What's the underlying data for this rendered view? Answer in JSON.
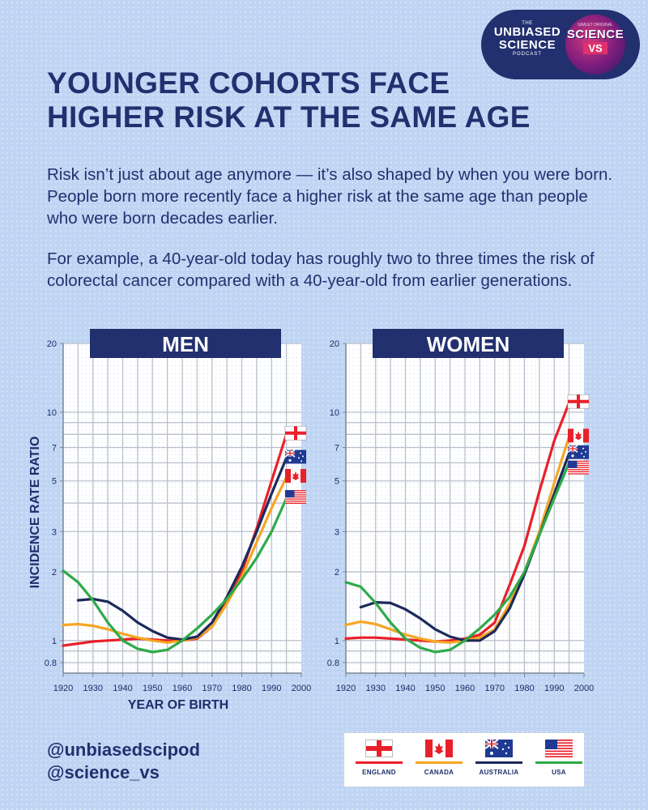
{
  "logos": {
    "unbiased": {
      "the": "THE",
      "line1": "UNBIASED",
      "line2": "SCIENCE",
      "sub": "PODCAST"
    },
    "sciencevs": {
      "top": "GIMLET ORIGINAL",
      "line1": "SCIENCE",
      "line2": "VS"
    }
  },
  "headline": {
    "line1": "YOUNGER COHORTS FACE",
    "line2": "HIGHER RISK AT THE SAME AGE"
  },
  "paragraphs": {
    "p1": "Risk isn’t just about age anymore — it’s also shaped by when you were born. People born more recently face a higher risk at the same age than people who were born decades earlier.",
    "p2": "For example, a 40-year-old today has roughly two to three times the risk of colorectal cancer compared with a 40-year-old from earlier generations."
  },
  "handles": {
    "h1": "@unbiasedscipod",
    "h2": "@science_vs"
  },
  "legend": [
    {
      "key": "england",
      "label": "ENGLAND",
      "color": "#e8202a"
    },
    {
      "key": "canada",
      "label": "CANADA",
      "color": "#f5a623"
    },
    {
      "key": "australia",
      "label": "AUSTRALIA",
      "color": "#1c2a5a"
    },
    {
      "key": "usa",
      "label": "USA",
      "color": "#2eaa4a"
    }
  ],
  "colors": {
    "england": "#e8202a",
    "canada": "#f5a623",
    "australia": "#1c2a5a",
    "usa": "#2eaa4a",
    "navy": "#22306f"
  },
  "chart_data": [
    {
      "type": "line",
      "title": "MEN",
      "xlabel": "YEAR OF BIRTH",
      "ylabel": "INCIDENCE RATE RATIO",
      "yscale": "log",
      "xlim": [
        1920,
        2000
      ],
      "ylim": [
        0.72,
        20
      ],
      "xticks": [
        1920,
        1930,
        1940,
        1950,
        1960,
        1970,
        1980,
        1990,
        2000
      ],
      "yticks": [
        0.8,
        1,
        2,
        3,
        5,
        7,
        10,
        20
      ],
      "flag_order": [
        "england",
        "australia",
        "canada",
        "usa"
      ],
      "series": [
        {
          "key": "england",
          "name": "England",
          "x": [
            1920,
            1925,
            1930,
            1935,
            1940,
            1945,
            1950,
            1955,
            1960,
            1965,
            1970,
            1975,
            1980,
            1985,
            1990,
            1995
          ],
          "y": [
            0.95,
            0.97,
            0.99,
            1.0,
            1.01,
            1.02,
            1.01,
            1.0,
            1.0,
            1.02,
            1.15,
            1.5,
            2.0,
            3.1,
            5.0,
            8.0
          ]
        },
        {
          "key": "canada",
          "name": "Canada",
          "x": [
            1920,
            1925,
            1930,
            1935,
            1940,
            1945,
            1950,
            1955,
            1960,
            1965,
            1970,
            1975,
            1980,
            1985,
            1990,
            1995
          ],
          "y": [
            1.17,
            1.18,
            1.16,
            1.12,
            1.07,
            1.03,
            1.0,
            0.98,
            1.0,
            1.03,
            1.15,
            1.45,
            1.9,
            2.7,
            3.8,
            5.2
          ]
        },
        {
          "key": "australia",
          "name": "Australia",
          "x": [
            1925,
            1930,
            1935,
            1940,
            1945,
            1950,
            1955,
            1960,
            1965,
            1970,
            1975,
            1980,
            1985,
            1990,
            1995
          ],
          "y": [
            1.5,
            1.52,
            1.48,
            1.35,
            1.2,
            1.1,
            1.03,
            1.01,
            1.04,
            1.2,
            1.55,
            2.1,
            3.0,
            4.4,
            6.3
          ]
        },
        {
          "key": "usa",
          "name": "USA",
          "x": [
            1920,
            1925,
            1930,
            1935,
            1940,
            1945,
            1950,
            1955,
            1960,
            1965,
            1970,
            1975,
            1980,
            1985,
            1990,
            1995
          ],
          "y": [
            2.02,
            1.8,
            1.5,
            1.2,
            1.0,
            0.92,
            0.89,
            0.91,
            1.0,
            1.13,
            1.3,
            1.52,
            1.85,
            2.3,
            3.0,
            4.2
          ]
        }
      ]
    },
    {
      "type": "line",
      "title": "WOMEN",
      "xlabel": "",
      "ylabel": "",
      "yscale": "log",
      "xlim": [
        1920,
        2000
      ],
      "ylim": [
        0.72,
        20
      ],
      "xticks": [
        1920,
        1930,
        1940,
        1950,
        1960,
        1970,
        1980,
        1990,
        2000
      ],
      "yticks": [
        0.8,
        1,
        2,
        3,
        5,
        7,
        10,
        20
      ],
      "flag_order": [
        "england",
        "canada",
        "australia",
        "usa"
      ],
      "series": [
        {
          "key": "england",
          "name": "England",
          "x": [
            1920,
            1925,
            1930,
            1935,
            1940,
            1945,
            1950,
            1955,
            1960,
            1965,
            1970,
            1975,
            1980,
            1985,
            1990,
            1995
          ],
          "y": [
            1.02,
            1.03,
            1.03,
            1.02,
            1.01,
            1.0,
            0.99,
            1.0,
            1.02,
            1.06,
            1.2,
            1.75,
            2.6,
            4.5,
            7.5,
            11.0
          ]
        },
        {
          "key": "canada",
          "name": "Canada",
          "x": [
            1920,
            1925,
            1930,
            1935,
            1940,
            1945,
            1950,
            1955,
            1960,
            1965,
            1970,
            1975,
            1980,
            1985,
            1990,
            1995
          ],
          "y": [
            1.17,
            1.21,
            1.18,
            1.12,
            1.06,
            1.02,
            0.99,
            0.98,
            1.0,
            1.03,
            1.12,
            1.45,
            2.0,
            3.0,
            4.9,
            7.8
          ]
        },
        {
          "key": "australia",
          "name": "Australia",
          "x": [
            1925,
            1930,
            1935,
            1940,
            1945,
            1950,
            1955,
            1960,
            1965,
            1970,
            1975,
            1980,
            1985,
            1990,
            1995
          ],
          "y": [
            1.4,
            1.47,
            1.46,
            1.37,
            1.25,
            1.12,
            1.04,
            1.0,
            1.0,
            1.1,
            1.38,
            1.95,
            2.9,
            4.4,
            6.6
          ]
        },
        {
          "key": "usa",
          "name": "USA",
          "x": [
            1920,
            1925,
            1930,
            1935,
            1940,
            1945,
            1950,
            1955,
            1960,
            1965,
            1970,
            1975,
            1980,
            1985,
            1990,
            1995
          ],
          "y": [
            1.8,
            1.72,
            1.46,
            1.2,
            1.02,
            0.93,
            0.89,
            0.91,
            1.0,
            1.13,
            1.3,
            1.55,
            2.0,
            2.9,
            4.2,
            6.0
          ]
        }
      ]
    }
  ]
}
